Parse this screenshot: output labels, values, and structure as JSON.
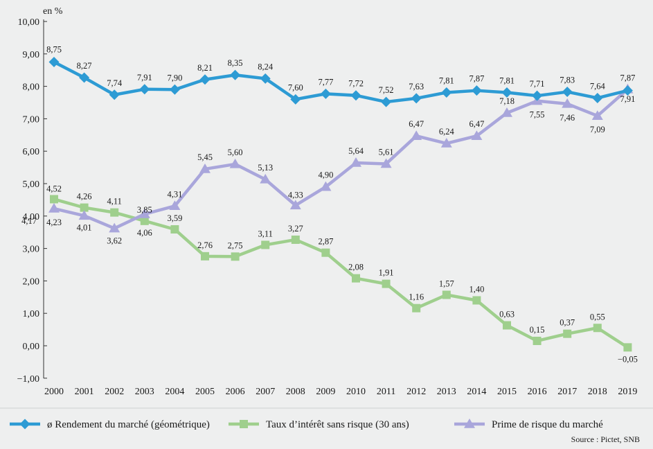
{
  "chart_data": {
    "type": "line",
    "unit_label": "en %",
    "x": [
      "2000",
      "2001",
      "2002",
      "2003",
      "2004",
      "2005",
      "2006",
      "2007",
      "2008",
      "2009",
      "2010",
      "2011",
      "2012",
      "2013",
      "2014",
      "2015",
      "2016",
      "2017",
      "2018",
      "2019"
    ],
    "ylim": [
      -1,
      10
    ],
    "yticks": [
      "−1,00",
      "0,00",
      "1,00",
      "2,00",
      "3,00",
      "4,00",
      "5,00",
      "6,00",
      "7,00",
      "8,00",
      "9,00",
      "10,00"
    ],
    "grid": false,
    "legend_position": "bottom",
    "series": [
      {
        "name": "ø Rendement du marché (géométrique)",
        "color": "#2d9bd4",
        "marker": "diamond",
        "values": [
          8.75,
          8.27,
          7.74,
          7.91,
          7.9,
          8.21,
          8.35,
          8.24,
          7.6,
          7.77,
          7.72,
          7.52,
          7.63,
          7.81,
          7.87,
          7.81,
          7.71,
          7.83,
          7.64,
          7.87
        ],
        "labels": [
          "8,75",
          "8,27",
          "7,74",
          "7,91",
          "7,90",
          "8,21",
          "8,35",
          "8,24",
          "7,60",
          "7,77",
          "7,72",
          "7,52",
          "7,63",
          "7,81",
          "7,87",
          "7,81",
          "7,71",
          "7,83",
          "7,64",
          "7,87"
        ]
      },
      {
        "name": "Taux d’intérêt sans risque (30 ans)",
        "color": "#9fcf8d",
        "marker": "square",
        "values": [
          4.52,
          4.26,
          4.11,
          3.85,
          3.59,
          2.76,
          2.75,
          3.11,
          3.27,
          2.87,
          2.08,
          1.91,
          1.16,
          1.57,
          1.4,
          0.63,
          0.15,
          0.37,
          0.55,
          -0.05
        ],
        "labels": [
          "4,52",
          "4,26",
          "4,11",
          "3,85",
          "3,59",
          "2,76",
          "2,75",
          "3,11",
          "3,27",
          "2,87",
          "2,08",
          "1,91",
          "1,16",
          "1,57",
          "1,40",
          "0,63",
          "0,15",
          "0,37",
          "0,55",
          "−0,05"
        ]
      },
      {
        "name": "Prime de risque du marché",
        "color": "#a9a6db",
        "marker": "triangle",
        "values": [
          4.23,
          4.01,
          3.62,
          4.06,
          4.31,
          5.45,
          5.6,
          5.13,
          4.33,
          4.9,
          5.64,
          5.61,
          6.47,
          6.24,
          6.47,
          7.18,
          7.55,
          7.46,
          7.09,
          7.91
        ],
        "labels": [
          "4,23",
          "4,01",
          "3,62",
          "4,06",
          "4,31",
          "5,45",
          "5,60",
          "5,13",
          "4,33",
          "4,90",
          "5,64",
          "5,61",
          "6,47",
          "6,24",
          "6,47",
          "7,18",
          "7,55",
          "7,46",
          "7,09",
          "7,91"
        ]
      }
    ],
    "annotations": [
      "4,17"
    ]
  },
  "source": "Source : Pictet, SNB"
}
